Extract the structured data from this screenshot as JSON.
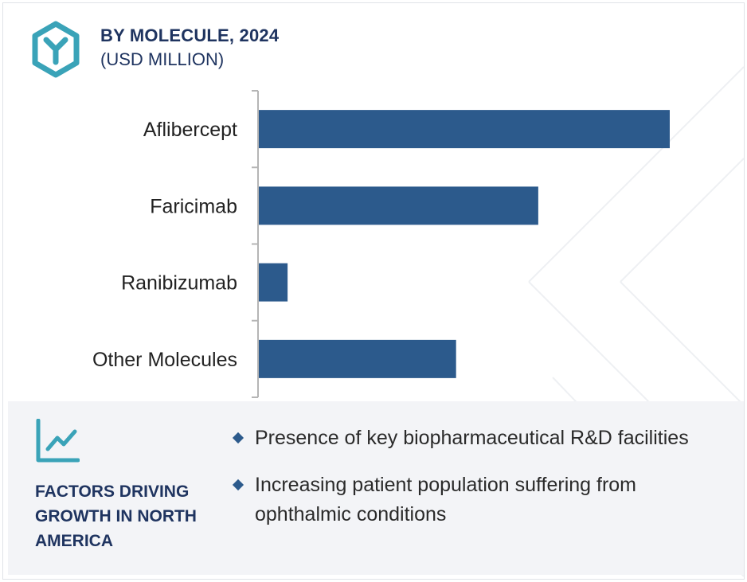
{
  "header": {
    "icon": "hexagon-y-icon",
    "title": "BY MOLECULE, 2024",
    "subtitle": "(USD MILLION)"
  },
  "colors": {
    "bar": "#2c5a8c",
    "accent": "#3aa3b8",
    "title": "#1f3460",
    "panel_bg": "#f3f4f7"
  },
  "chart_data": {
    "type": "bar",
    "orientation": "horizontal",
    "title": "BY MOLECULE, 2024",
    "subtitle": "(USD MILLION)",
    "categories": [
      "Aflibercept",
      "Faricimab",
      "Ranibizumab",
      "Other Molecules"
    ],
    "values": [
      100,
      68,
      7,
      48
    ],
    "xlabel": "",
    "ylabel": "",
    "xlim": [
      0,
      100
    ],
    "grid": false,
    "legend": "none",
    "value_axis_labels": false
  },
  "factors": {
    "icon": "line-chart-icon",
    "title": "FACTORS DRIVING GROWTH IN NORTH AMERICA",
    "items": [
      "Presence of key biopharmaceutical R&D facilities",
      "Increasing patient population suffering from ophthalmic conditions"
    ]
  }
}
